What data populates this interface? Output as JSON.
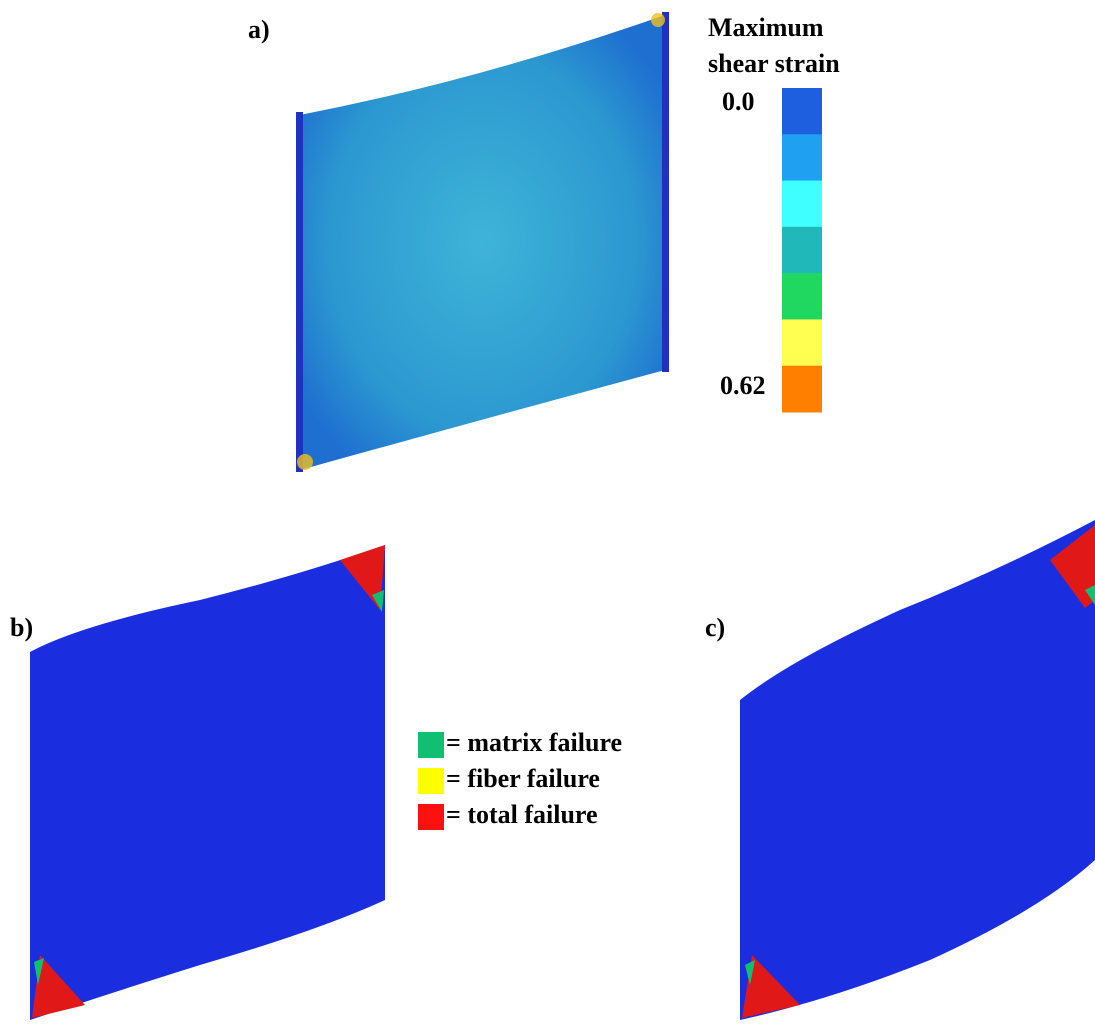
{
  "panels": {
    "a": "a)",
    "b": "b)",
    "c": "c)"
  },
  "colorbar": {
    "title": [
      "Maximum",
      "shear strain"
    ],
    "min_label": "0.0",
    "max_label": "0.62",
    "colors": [
      "#1e5fe0",
      "#20a0f0",
      "#40ffff",
      "#20b8b8",
      "#20d860",
      "#ffff50",
      "#ff8000"
    ]
  },
  "legend": [
    {
      "label": "= matrix failure",
      "color": "#10c070"
    },
    {
      "label": "= fiber failure",
      "color": "#ffff00"
    },
    {
      "label": "= total failure",
      "color": "#ff1010"
    }
  ]
}
